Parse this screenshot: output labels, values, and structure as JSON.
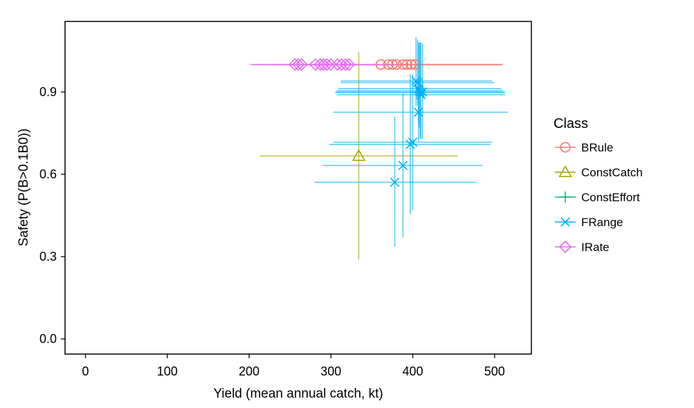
{
  "chart_data": {
    "type": "scatter",
    "xlabel": "Yield (mean annual catch, kt)",
    "ylabel": "Safety (P(B>0.1B0))",
    "xlim": [
      -25,
      545
    ],
    "ylim": [
      -0.055,
      1.157
    ],
    "x_ticks": [
      0,
      100,
      200,
      300,
      400,
      500
    ],
    "y_ticks": [
      0.0,
      0.3,
      0.6,
      0.9
    ],
    "x_tick_labels": [
      "0",
      "100",
      "200",
      "300",
      "400",
      "500"
    ],
    "y_tick_labels": [
      "0.0",
      "0.3",
      "0.6",
      "0.9"
    ],
    "grid": false,
    "legend_position": "right",
    "legend_title": "Class",
    "series": [
      {
        "name": "BRule",
        "color": "#F8766D",
        "marker": "circle",
        "points": [
          {
            "x": 361,
            "y": 1.0,
            "xmin": 290,
            "xmax": 500,
            "ymin": 1.0,
            "ymax": 1.0
          },
          {
            "x": 370,
            "y": 1.0,
            "xmin": 300,
            "xmax": 505,
            "ymin": 1.0,
            "ymax": 1.0
          },
          {
            "x": 375,
            "y": 1.0,
            "xmin": 305,
            "xmax": 505,
            "ymin": 1.0,
            "ymax": 1.0
          },
          {
            "x": 380,
            "y": 1.0,
            "xmin": 310,
            "xmax": 508,
            "ymin": 1.0,
            "ymax": 1.0
          },
          {
            "x": 388,
            "y": 1.0,
            "xmin": 315,
            "xmax": 508,
            "ymin": 1.0,
            "ymax": 1.0
          },
          {
            "x": 393,
            "y": 1.0,
            "xmin": 320,
            "xmax": 510,
            "ymin": 1.0,
            "ymax": 1.0
          },
          {
            "x": 398,
            "y": 1.0,
            "xmin": 325,
            "xmax": 510,
            "ymin": 1.0,
            "ymax": 1.0
          },
          {
            "x": 403,
            "y": 1.0,
            "xmin": 330,
            "xmax": 510,
            "ymin": 1.0,
            "ymax": 1.0
          }
        ]
      },
      {
        "name": "ConstCatch",
        "color": "#A3A500",
        "marker": "triangle",
        "points": [
          {
            "x": 334,
            "y": 0.667,
            "xmin": 213,
            "xmax": 455,
            "ymin": 0.29,
            "ymax": 1.045
          }
        ]
      },
      {
        "name": "ConstEffort",
        "color": "#00BF7D",
        "marker": "plus",
        "points": []
      },
      {
        "name": "FRange",
        "color": "#00B0F6",
        "marker": "cross",
        "points": [
          {
            "x": 378,
            "y": 0.571,
            "xmin": 280,
            "xmax": 477,
            "ymin": 0.335,
            "ymax": 0.81
          },
          {
            "x": 388,
            "y": 0.632,
            "xmin": 290,
            "xmax": 485,
            "ymin": 0.37,
            "ymax": 0.895
          },
          {
            "x": 397,
            "y": 0.709,
            "xmin": 298,
            "xmax": 495,
            "ymin": 0.455,
            "ymax": 0.965
          },
          {
            "x": 400,
            "y": 0.717,
            "xmin": 303,
            "xmax": 497,
            "ymin": 0.47,
            "ymax": 0.965
          },
          {
            "x": 407,
            "y": 0.826,
            "xmin": 303,
            "xmax": 516,
            "ymin": 0.72,
            "ymax": 0.94
          },
          {
            "x": 404,
            "y": 0.94,
            "xmin": 312,
            "xmax": 497,
            "ymin": 0.85,
            "ymax": 1.1
          },
          {
            "x": 406,
            "y": 0.934,
            "xmin": 312,
            "xmax": 500,
            "ymin": 0.85,
            "ymax": 1.09
          },
          {
            "x": 407,
            "y": 0.912,
            "xmin": 309,
            "xmax": 508,
            "ymin": 0.79,
            "ymax": 1.08
          },
          {
            "x": 408,
            "y": 0.905,
            "xmin": 307,
            "xmax": 510,
            "ymin": 0.77,
            "ymax": 1.08
          },
          {
            "x": 409,
            "y": 0.898,
            "xmin": 305,
            "xmax": 512,
            "ymin": 0.73,
            "ymax": 1.08
          },
          {
            "x": 410,
            "y": 0.89,
            "xmin": 307,
            "xmax": 513,
            "ymin": 0.73,
            "ymax": 1.08
          },
          {
            "x": 412,
            "y": 0.9,
            "xmin": 306,
            "xmax": 513,
            "ymin": 0.73,
            "ymax": 1.075
          }
        ]
      },
      {
        "name": "IRate",
        "color": "#E76BF3",
        "marker": "diamond",
        "points": [
          {
            "x": 256,
            "y": 1.0,
            "xmin": 200,
            "xmax": 320,
            "ymin": 1.0,
            "ymax": 1.0
          },
          {
            "x": 260,
            "y": 1.0,
            "xmin": 203,
            "xmax": 325,
            "ymin": 1.0,
            "ymax": 1.0
          },
          {
            "x": 264,
            "y": 1.0,
            "xmin": 205,
            "xmax": 330,
            "ymin": 1.0,
            "ymax": 1.0
          },
          {
            "x": 281,
            "y": 1.0,
            "xmin": 210,
            "xmax": 345,
            "ymin": 1.0,
            "ymax": 1.0
          },
          {
            "x": 287,
            "y": 1.0,
            "xmin": 215,
            "xmax": 350,
            "ymin": 1.0,
            "ymax": 1.0
          },
          {
            "x": 291,
            "y": 1.0,
            "xmin": 220,
            "xmax": 355,
            "ymin": 1.0,
            "ymax": 1.0
          },
          {
            "x": 295,
            "y": 1.0,
            "xmin": 225,
            "xmax": 360,
            "ymin": 1.0,
            "ymax": 1.0
          },
          {
            "x": 300,
            "y": 1.0,
            "xmin": 230,
            "xmax": 365,
            "ymin": 1.0,
            "ymax": 1.0
          },
          {
            "x": 308,
            "y": 1.0,
            "xmin": 235,
            "xmax": 370,
            "ymin": 1.0,
            "ymax": 1.0
          },
          {
            "x": 313,
            "y": 1.0,
            "xmin": 240,
            "xmax": 375,
            "ymin": 1.0,
            "ymax": 1.0
          },
          {
            "x": 318,
            "y": 1.0,
            "xmin": 245,
            "xmax": 380,
            "ymin": 1.0,
            "ymax": 1.0
          },
          {
            "x": 322,
            "y": 1.0,
            "xmin": 250,
            "xmax": 385,
            "ymin": 1.0,
            "ymax": 1.0
          }
        ]
      }
    ]
  }
}
